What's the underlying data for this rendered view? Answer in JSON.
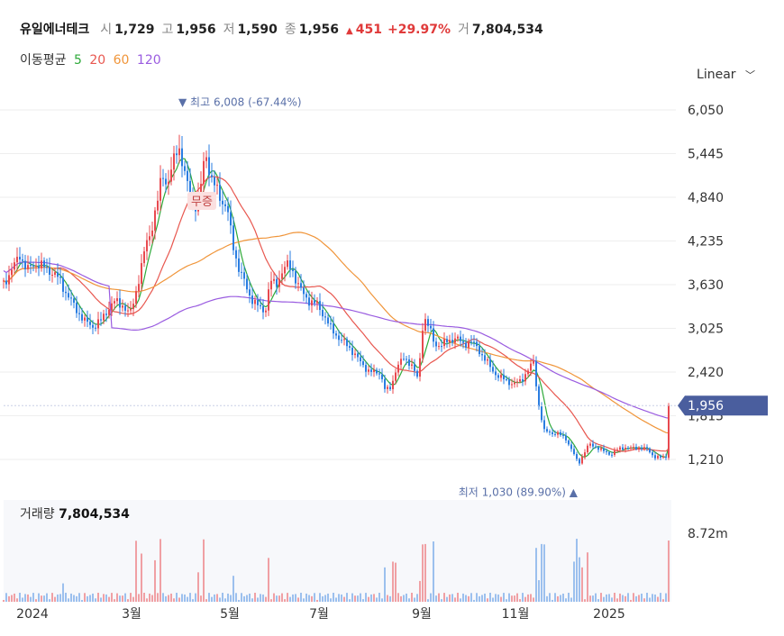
{
  "header": {
    "name": "유일에너테크",
    "open_label": "시",
    "open": "1,729",
    "high_label": "고",
    "high": "1,956",
    "low_label": "저",
    "low": "1,590",
    "close_label": "종",
    "close": "1,956",
    "change": "451",
    "change_pct": "+29.97%",
    "volume_label": "거",
    "volume": "7,804,534"
  },
  "ma_legend": {
    "label": "이동평균",
    "items": [
      {
        "label": "5",
        "color": "#2eaa3a"
      },
      {
        "label": "20",
        "color": "#e8574f"
      },
      {
        "label": "60",
        "color": "#f0953a"
      },
      {
        "label": "120",
        "color": "#9a5ce0"
      }
    ]
  },
  "scale_toggle": {
    "label": "Linear"
  },
  "colors": {
    "up": "#e8494f",
    "down": "#2a7de1",
    "badge": "#4a5e9e",
    "grid": "#eeeeee"
  },
  "chart_data": {
    "type": "candlestick",
    "y_ticks": [
      "6,050",
      "5,445",
      "4,840",
      "4,235",
      "3,630",
      "3,025",
      "2,420",
      "1,815",
      "1,210"
    ],
    "y_range": [
      1030,
      6250
    ],
    "x_ticks": [
      "2024",
      "3월",
      "5월",
      "7월",
      "9월",
      "11월",
      "2025"
    ],
    "current_price_label": "1,956",
    "high_annotation": {
      "label": "최고",
      "value": "6,008 (-67.44%)",
      "price": 6008
    },
    "low_annotation": {
      "label": "최저",
      "value": "1,030 (89.90%)",
      "price": 1030
    },
    "halt_label": "무증",
    "volume_title": "거래량",
    "volume_value": "7,804,534",
    "volume_max_label": "8.72m",
    "price_series": [
      {
        "x": 0,
        "y": 3650
      },
      {
        "x": 10,
        "y": 3850
      },
      {
        "x": 18,
        "y": 4050
      },
      {
        "x": 26,
        "y": 3820
      },
      {
        "x": 34,
        "y": 3930
      },
      {
        "x": 44,
        "y": 3880
      },
      {
        "x": 54,
        "y": 3800
      },
      {
        "x": 62,
        "y": 3700
      },
      {
        "x": 70,
        "y": 3500
      },
      {
        "x": 80,
        "y": 3300
      },
      {
        "x": 90,
        "y": 3120
      },
      {
        "x": 100,
        "y": 3050
      },
      {
        "x": 108,
        "y": 3130
      },
      {
        "x": 116,
        "y": 3300
      },
      {
        "x": 124,
        "y": 3400
      },
      {
        "x": 132,
        "y": 3350
      },
      {
        "x": 140,
        "y": 3200
      },
      {
        "x": 146,
        "y": 3500
      },
      {
        "x": 152,
        "y": 3800
      },
      {
        "x": 158,
        "y": 4200
      },
      {
        "x": 164,
        "y": 4400
      },
      {
        "x": 170,
        "y": 4700
      },
      {
        "x": 176,
        "y": 5200
      },
      {
        "x": 182,
        "y": 5000
      },
      {
        "x": 188,
        "y": 5300
      },
      {
        "x": 194,
        "y": 5600
      },
      {
        "x": 200,
        "y": 5200
      },
      {
        "x": 206,
        "y": 4900
      },
      {
        "x": 212,
        "y": 4700
      },
      {
        "x": 218,
        "y": 4900
      },
      {
        "x": 224,
        "y": 5500
      },
      {
        "x": 230,
        "y": 5100
      },
      {
        "x": 236,
        "y": 4950
      },
      {
        "x": 242,
        "y": 4800
      },
      {
        "x": 248,
        "y": 4700
      },
      {
        "x": 254,
        "y": 4200
      },
      {
        "x": 260,
        "y": 3900
      },
      {
        "x": 266,
        "y": 3700
      },
      {
        "x": 272,
        "y": 3500
      },
      {
        "x": 278,
        "y": 3400
      },
      {
        "x": 284,
        "y": 3300
      },
      {
        "x": 290,
        "y": 3250
      },
      {
        "x": 296,
        "y": 3700
      },
      {
        "x": 302,
        "y": 3600
      },
      {
        "x": 308,
        "y": 3800
      },
      {
        "x": 314,
        "y": 3900
      },
      {
        "x": 320,
        "y": 3850
      },
      {
        "x": 326,
        "y": 3650
      },
      {
        "x": 332,
        "y": 3500
      },
      {
        "x": 340,
        "y": 3400
      },
      {
        "x": 348,
        "y": 3350
      },
      {
        "x": 356,
        "y": 3200
      },
      {
        "x": 364,
        "y": 3000
      },
      {
        "x": 372,
        "y": 2900
      },
      {
        "x": 380,
        "y": 2800
      },
      {
        "x": 388,
        "y": 2700
      },
      {
        "x": 396,
        "y": 2550
      },
      {
        "x": 404,
        "y": 2450
      },
      {
        "x": 412,
        "y": 2400
      },
      {
        "x": 418,
        "y": 2420
      },
      {
        "x": 424,
        "y": 2150
      },
      {
        "x": 430,
        "y": 2200
      },
      {
        "x": 436,
        "y": 2500
      },
      {
        "x": 444,
        "y": 2600
      },
      {
        "x": 452,
        "y": 2550
      },
      {
        "x": 460,
        "y": 2300
      },
      {
        "x": 466,
        "y": 3200
      },
      {
        "x": 472,
        "y": 3050
      },
      {
        "x": 478,
        "y": 2800
      },
      {
        "x": 486,
        "y": 2800
      },
      {
        "x": 494,
        "y": 2850
      },
      {
        "x": 502,
        "y": 2900
      },
      {
        "x": 510,
        "y": 2800
      },
      {
        "x": 518,
        "y": 2850
      },
      {
        "x": 526,
        "y": 2750
      },
      {
        "x": 534,
        "y": 2600
      },
      {
        "x": 542,
        "y": 2450
      },
      {
        "x": 550,
        "y": 2350
      },
      {
        "x": 558,
        "y": 2300
      },
      {
        "x": 566,
        "y": 2250
      },
      {
        "x": 574,
        "y": 2300
      },
      {
        "x": 582,
        "y": 2450
      },
      {
        "x": 588,
        "y": 2550
      },
      {
        "x": 594,
        "y": 1950
      },
      {
        "x": 600,
        "y": 1600
      },
      {
        "x": 608,
        "y": 1580
      },
      {
        "x": 616,
        "y": 1560
      },
      {
        "x": 624,
        "y": 1500
      },
      {
        "x": 632,
        "y": 1300
      },
      {
        "x": 638,
        "y": 1150
      },
      {
        "x": 644,
        "y": 1300
      },
      {
        "x": 650,
        "y": 1420
      },
      {
        "x": 658,
        "y": 1380
      },
      {
        "x": 666,
        "y": 1320
      },
      {
        "x": 674,
        "y": 1280
      },
      {
        "x": 682,
        "y": 1350
      },
      {
        "x": 690,
        "y": 1380
      },
      {
        "x": 698,
        "y": 1360
      },
      {
        "x": 706,
        "y": 1380
      },
      {
        "x": 714,
        "y": 1350
      },
      {
        "x": 722,
        "y": 1250
      },
      {
        "x": 730,
        "y": 1230
      },
      {
        "x": 736,
        "y": 1250
      },
      {
        "x": 740,
        "y": 1956
      }
    ]
  }
}
